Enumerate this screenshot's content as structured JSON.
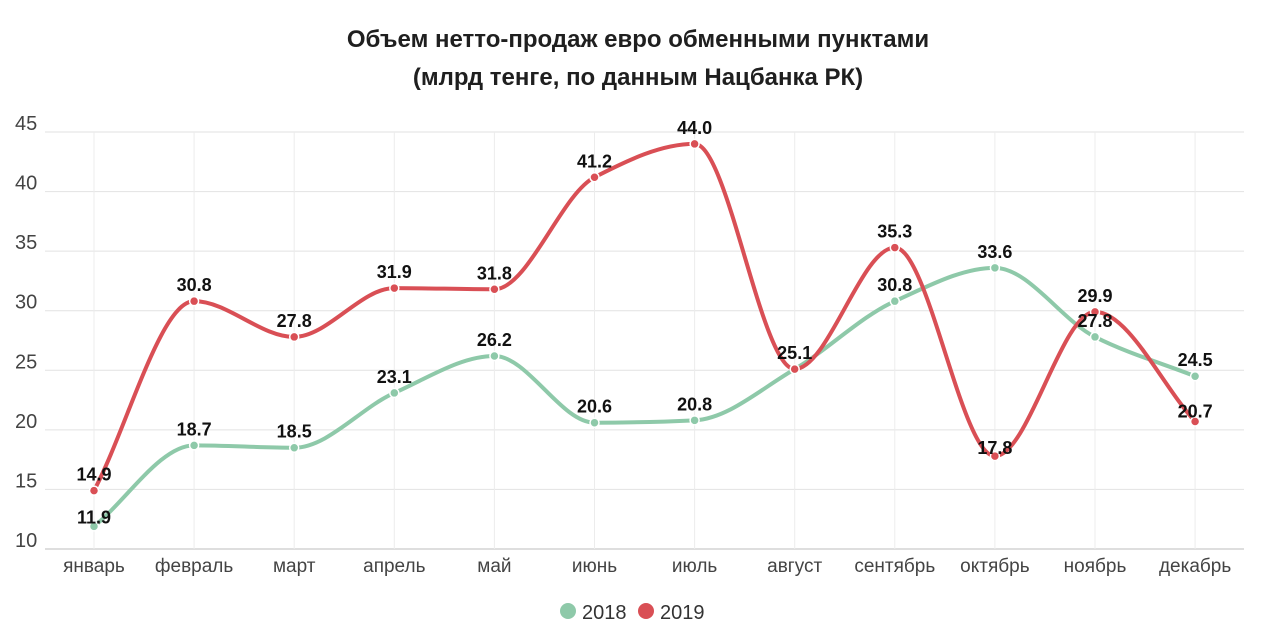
{
  "chart_data": {
    "type": "line",
    "title_line1": "Объем нетто-продаж евро обменными пунктами",
    "title_line2": "(млрд тенге, по данным Нацбанка РК)",
    "categories": [
      "январь",
      "февраль",
      "март",
      "апрель",
      "май",
      "июнь",
      "июль",
      "август",
      "сентябрь",
      "октябрь",
      "ноябрь",
      "декабрь"
    ],
    "y_ticks": [
      "10",
      "15",
      "20",
      "25",
      "30",
      "35",
      "40",
      "45"
    ],
    "ylim": [
      10,
      45
    ],
    "grid": true,
    "legend_position": "bottom",
    "series": [
      {
        "name": "2018",
        "color": "#8ec9a9",
        "values": [
          11.9,
          18.7,
          18.5,
          23.1,
          26.2,
          20.6,
          20.8,
          25.1,
          30.8,
          33.6,
          27.8,
          24.5
        ],
        "labels": [
          "11.9",
          "18.7",
          "18.5",
          "23.1",
          "26.2",
          "20.6",
          "20.8",
          "",
          "30.8",
          "33.6",
          "27.8",
          "24.5"
        ]
      },
      {
        "name": "2019",
        "color": "#d94f55",
        "values": [
          14.9,
          30.8,
          27.8,
          31.9,
          31.8,
          41.2,
          44.0,
          25.1,
          35.3,
          17.8,
          29.9,
          20.7
        ],
        "labels": [
          "14.9",
          "30.8",
          "27.8",
          "31.9",
          "31.8",
          "41.2",
          "44.0",
          "25.1",
          "35.3",
          "17.8",
          "29.9",
          "20.7"
        ]
      }
    ]
  }
}
